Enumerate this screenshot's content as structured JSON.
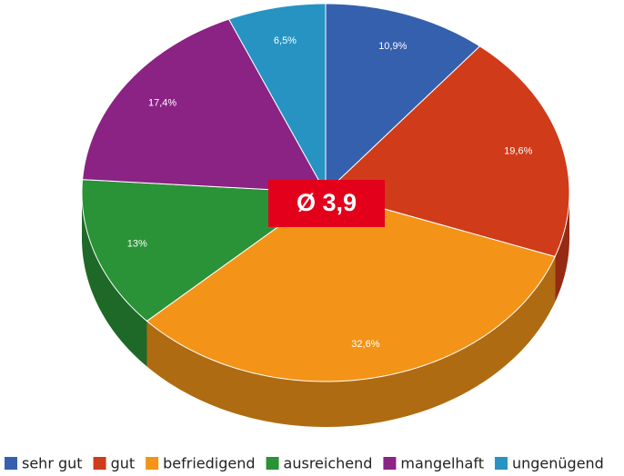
{
  "chart_data": {
    "type": "pie3d",
    "annotation": "Ø 3,9",
    "categories": [
      "sehr gut",
      "gut",
      "befriedigend",
      "ausreichend",
      "mangelhaft",
      "ungenügend"
    ],
    "values": [
      10.9,
      19.6,
      32.6,
      13,
      17.4,
      6.5
    ],
    "value_labels": [
      "10,9%",
      "19,6%",
      "32,6%",
      "13%",
      "17,4%",
      "6,5%"
    ],
    "colors": [
      "#3560ad",
      "#d03b1a",
      "#f39418",
      "#2a9237",
      "#8a2384",
      "#2793c3"
    ],
    "legend": "bottom"
  }
}
